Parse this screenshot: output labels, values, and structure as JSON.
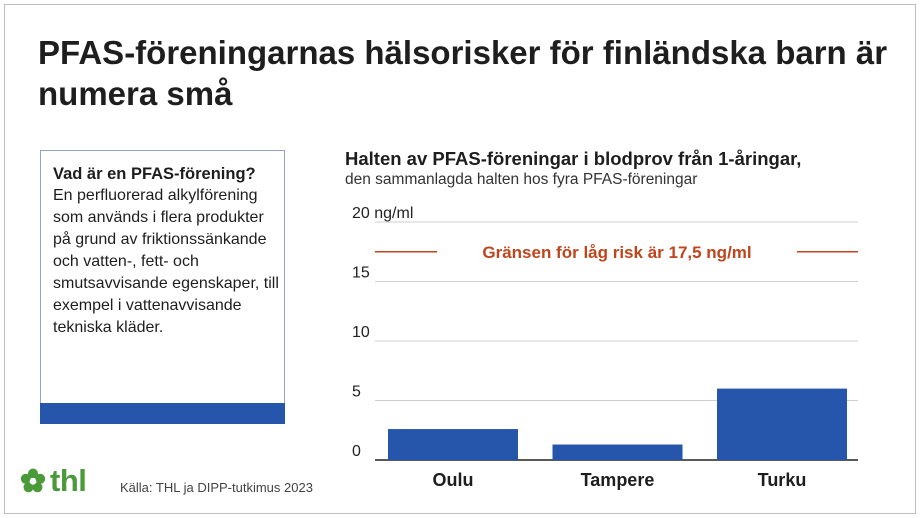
{
  "title": "PFAS-föreningarnas hälsorisker för finländska barn är numera små",
  "infobox": {
    "question": "Vad är en PFAS-förening?",
    "definition": "En perfluorerad alkylförening som används i flera produkter på grund av friktionssänkande och vatten-, fett- och smutsavvisande egenskaper, till exempel i vattenavvisande tekniska kläder."
  },
  "chart_title": "Halten av PFAS-föreningar i blodprov från 1-åringar,",
  "chart_subtitle": "den sammanlagda halten hos fyra PFAS-föreningar",
  "chart_data": {
    "type": "bar",
    "categories": [
      "Oulu",
      "Tampere",
      "Turku"
    ],
    "values": [
      2.6,
      1.3,
      6.0
    ],
    "ylim": [
      0,
      20
    ],
    "yticks": [
      0,
      5,
      10,
      15,
      20
    ],
    "ytick_labels": [
      "0",
      "5",
      "10",
      "15",
      "20 ng/ml"
    ],
    "grid": true,
    "bar_color": "#2556ab",
    "reference_line": {
      "value": 17.5,
      "label": "Gränsen för låg risk är 17,5 ng/ml",
      "color": "#c0441c"
    }
  },
  "logo": {
    "name": "thl-logo-icon",
    "text": "thl",
    "color": "#4a9a3a"
  },
  "source": "Källa: THL ja DIPP-tutkimus 2023"
}
